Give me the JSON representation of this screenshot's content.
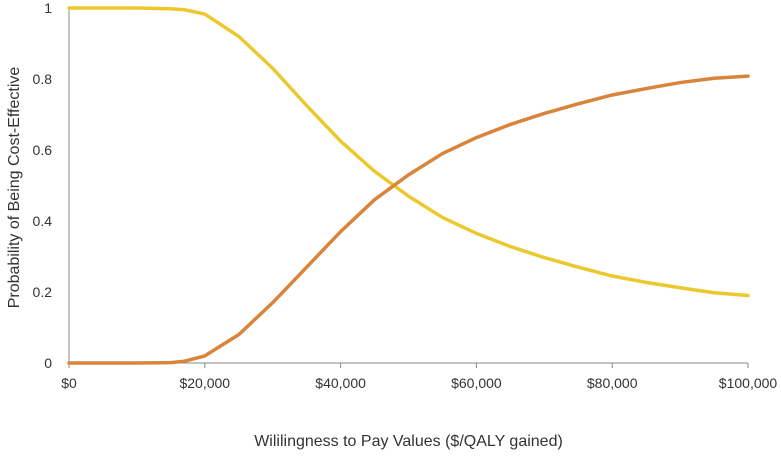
{
  "chart_data": {
    "type": "line",
    "title": "",
    "xlabel": "Wililingness to Pay Values ($/QALY gained)",
    "ylabel": "Probability of Being Cost-Effective",
    "xlim": [
      0,
      100000
    ],
    "ylim": [
      0,
      1
    ],
    "x_ticks": [
      0,
      20000,
      40000,
      60000,
      80000,
      100000
    ],
    "x_tick_labels": [
      "$0",
      "$20,000",
      "$40,000",
      "$60,000",
      "$80,000",
      "$100,000"
    ],
    "y_ticks": [
      0,
      0.2,
      0.4,
      0.6,
      0.8,
      1
    ],
    "y_tick_labels": [
      "0",
      "0.2",
      "0.4",
      "0.6",
      "0.8",
      "1"
    ],
    "grid": false,
    "legend": "none",
    "series": [
      {
        "color": "#EBC92E",
        "points": [
          [
            0,
            1.0
          ],
          [
            5000,
            1.0
          ],
          [
            10000,
            1.0
          ],
          [
            15000,
            0.998
          ],
          [
            17000,
            0.995
          ],
          [
            20000,
            0.983
          ],
          [
            25000,
            0.92
          ],
          [
            30000,
            0.83
          ],
          [
            35000,
            0.725
          ],
          [
            40000,
            0.625
          ],
          [
            45000,
            0.54
          ],
          [
            50000,
            0.47
          ],
          [
            55000,
            0.41
          ],
          [
            60000,
            0.365
          ],
          [
            65000,
            0.328
          ],
          [
            70000,
            0.297
          ],
          [
            75000,
            0.27
          ],
          [
            80000,
            0.245
          ],
          [
            85000,
            0.227
          ],
          [
            90000,
            0.212
          ],
          [
            95000,
            0.198
          ],
          [
            100000,
            0.19
          ]
        ]
      },
      {
        "color": "#D9843A",
        "points": [
          [
            0,
            0.0
          ],
          [
            5000,
            0.0
          ],
          [
            10000,
            0.0
          ],
          [
            15000,
            0.001
          ],
          [
            17000,
            0.005
          ],
          [
            20000,
            0.02
          ],
          [
            25000,
            0.08
          ],
          [
            30000,
            0.17
          ],
          [
            35000,
            0.27
          ],
          [
            40000,
            0.37
          ],
          [
            45000,
            0.46
          ],
          [
            50000,
            0.53
          ],
          [
            55000,
            0.59
          ],
          [
            60000,
            0.635
          ],
          [
            65000,
            0.672
          ],
          [
            70000,
            0.703
          ],
          [
            75000,
            0.73
          ],
          [
            80000,
            0.755
          ],
          [
            85000,
            0.773
          ],
          [
            90000,
            0.79
          ],
          [
            95000,
            0.802
          ],
          [
            100000,
            0.808
          ]
        ]
      }
    ]
  }
}
